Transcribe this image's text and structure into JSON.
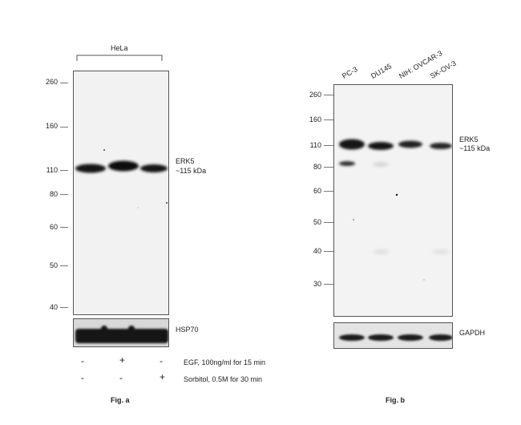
{
  "fig_a": {
    "cell_line": "HeLa",
    "mw_markers": [
      "260",
      "160",
      "110",
      "80",
      "60",
      "50",
      "40"
    ],
    "target": "ERK5",
    "target_size": "~115 kDa",
    "loading_control": "HSP70",
    "treatments": [
      {
        "label": "EGF, 100ng/ml for 15 min",
        "signs": [
          "-",
          "+",
          "-"
        ]
      },
      {
        "label": "Sorbitol, 0.5M for 30 min",
        "signs": [
          "-",
          "-",
          "+"
        ]
      }
    ],
    "caption": "Fig. a"
  },
  "fig_b": {
    "lanes": [
      "PC-3",
      "DU145",
      "NIH: OVCAR-3",
      "SK-OV-3"
    ],
    "mw_markers": [
      "260",
      "160",
      "110",
      "80",
      "60",
      "50",
      "40",
      "30"
    ],
    "target": "ERK5",
    "target_size": "~115 kDa",
    "loading_control": "GAPDH",
    "caption": "Fig. b"
  }
}
